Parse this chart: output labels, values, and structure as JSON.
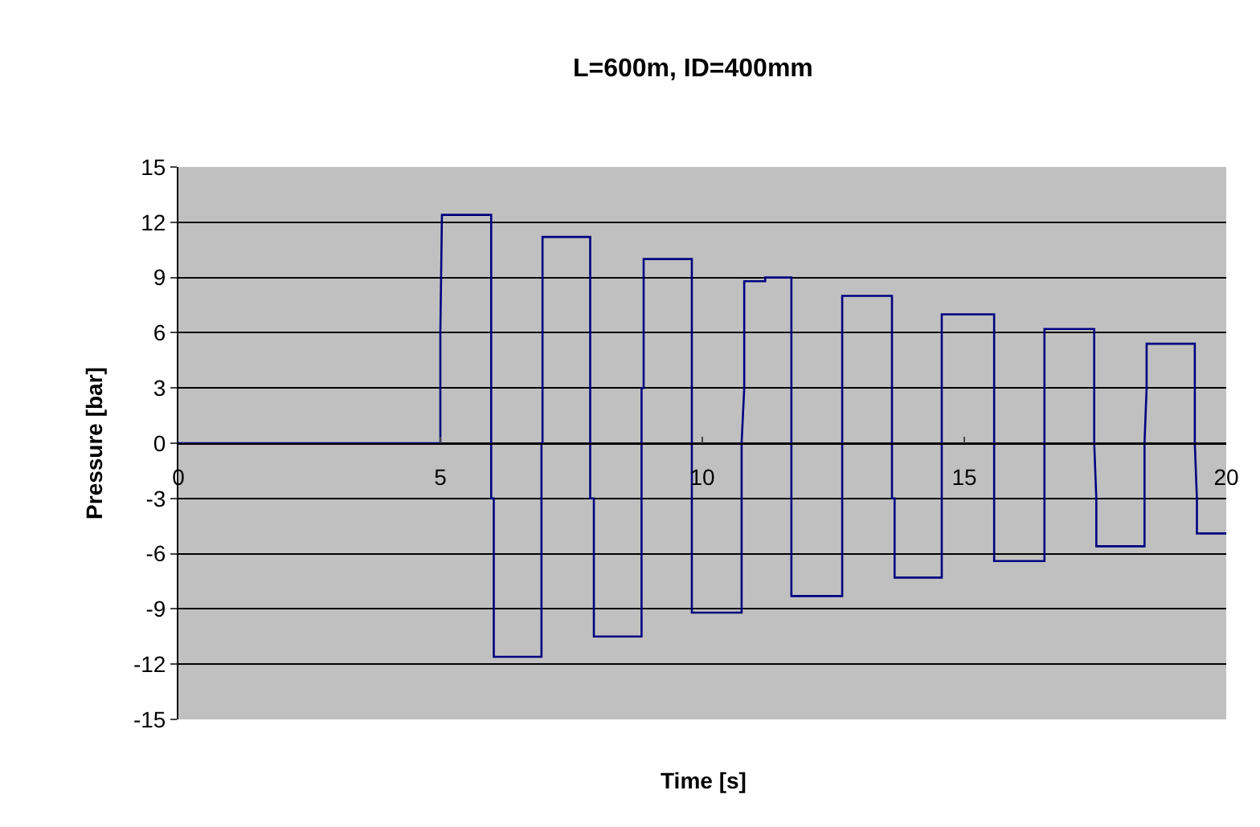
{
  "chart_data": {
    "type": "line",
    "title": "L=600m, ID=400mm",
    "xlabel": "Time [s]",
    "ylabel": "Pressure [bar]",
    "series": [
      {
        "color": "#000080",
        "x": [
          0,
          5.0,
          5.0,
          5.03,
          5.97,
          5.97,
          6.02,
          6.02,
          6.93,
          6.93,
          6.95,
          6.95,
          7.86,
          7.86,
          7.93,
          7.93,
          8.84,
          8.84,
          8.88,
          8.88,
          9.8,
          9.8,
          9.8,
          10.75,
          10.75,
          10.8,
          10.8,
          11.2,
          11.2,
          11.7,
          11.7,
          11.7,
          12.67,
          12.67,
          12.67,
          13.62,
          13.62,
          13.67,
          13.67,
          14.57,
          14.57,
          14.57,
          15.57,
          15.57,
          15.57,
          16.53,
          16.53,
          16.53,
          17.48,
          17.48,
          17.52,
          17.52,
          18.44,
          18.44,
          18.48,
          18.48,
          19.4,
          19.4,
          19.44,
          19.44,
          20
        ],
        "values": [
          0,
          0,
          6,
          12.4,
          12.4,
          -3,
          -3,
          -11.6,
          -11.6,
          0,
          0,
          11.2,
          11.2,
          -3,
          -3,
          -10.5,
          -10.5,
          3,
          3,
          10.0,
          10.0,
          0,
          -9.2,
          -9.2,
          0,
          3,
          8.8,
          8.8,
          9.0,
          9.0,
          0,
          -8.3,
          -8.3,
          0,
          8.0,
          8.0,
          -3,
          -3,
          -7.3,
          -7.3,
          0,
          7.0,
          7.0,
          0,
          -6.4,
          -6.4,
          0,
          6.2,
          6.2,
          0,
          -3,
          -5.6,
          -5.6,
          0,
          3,
          5.4,
          5.4,
          0,
          -3,
          -4.9,
          -4.9
        ]
      }
    ],
    "xlim": [
      0,
      20
    ],
    "xticks": [
      0,
      5,
      10,
      15,
      20
    ],
    "ylim": [
      -15,
      15
    ],
    "yticks": [
      -15,
      -12,
      -9,
      -6,
      -3,
      0,
      3,
      6,
      9,
      12,
      15
    ],
    "grid": "y",
    "marker": "none",
    "line_style": "solid"
  }
}
